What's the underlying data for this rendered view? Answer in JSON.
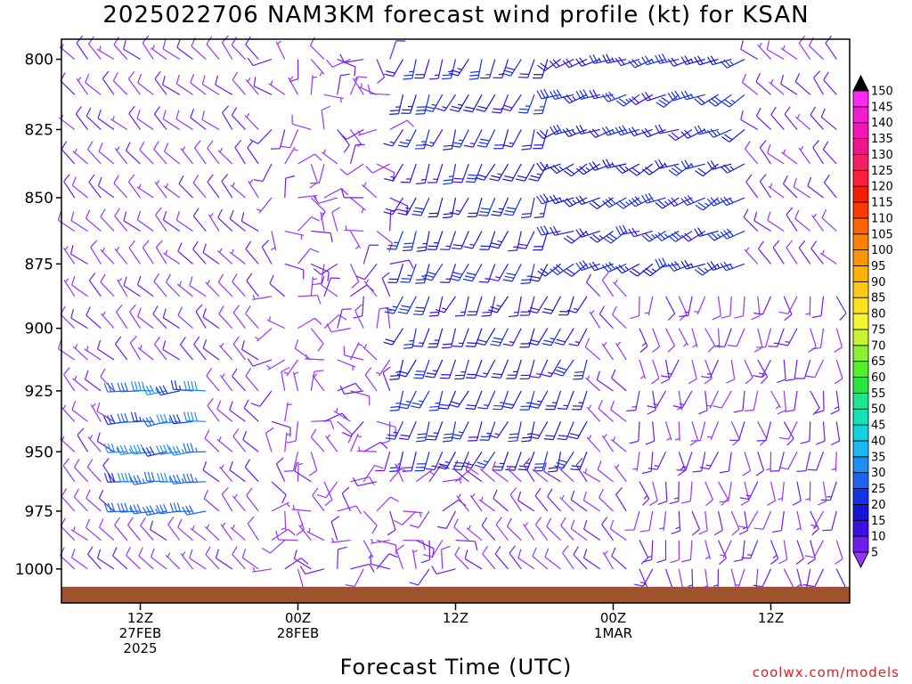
{
  "chart_data": {
    "type": "wind-barb profile",
    "title": "2025022706 NAM3KM forecast wind profile (kt) for KSAN",
    "xlabel": "Forecast Time (UTC)",
    "ylabel": "",
    "y_ticks": [
      800,
      825,
      850,
      875,
      900,
      925,
      950,
      975,
      1000
    ],
    "ylim": [
      1015,
      793
    ],
    "y_scale": "log-pressure",
    "x_ticks": [
      {
        "hour": 6,
        "lines": [
          "12Z",
          "27FEB",
          "2025"
        ]
      },
      {
        "hour": 18,
        "lines": [
          "00Z",
          "28FEB",
          ""
        ]
      },
      {
        "hour": 30,
        "lines": [
          "12Z",
          "",
          ""
        ]
      },
      {
        "hour": 42,
        "lines": [
          "00Z",
          "1MAR",
          ""
        ]
      },
      {
        "hour": 54,
        "lines": [
          "12Z",
          "",
          ""
        ]
      }
    ],
    "xlim": [
      0,
      60
    ],
    "colorbar": {
      "levels": [
        5,
        10,
        15,
        20,
        25,
        30,
        35,
        40,
        45,
        50,
        55,
        60,
        65,
        70,
        75,
        80,
        85,
        90,
        95,
        100,
        105,
        110,
        115,
        120,
        125,
        130,
        135,
        140,
        145,
        150
      ],
      "colors": [
        "#9a33ff",
        "#6e1cf0",
        "#3a10e6",
        "#1515d8",
        "#1532e6",
        "#1e64f0",
        "#1e8ef5",
        "#1ab8f5",
        "#11d2e0",
        "#15e0b8",
        "#1ee68c",
        "#28e640",
        "#52f028",
        "#8cf032",
        "#c8f532",
        "#f5f532",
        "#ffe11e",
        "#ffc814",
        "#ffb000",
        "#ff9600",
        "#ff8200",
        "#ff6400",
        "#ff3a00",
        "#f51e00",
        "#ff1e3c",
        "#f51e64",
        "#f0148c",
        "#f514b4",
        "#f01ed2",
        "#ff28f0"
      ]
    },
    "terrain_color": "#a0522d",
    "surface_pressure_hpa": 1009,
    "wind_regimes": [
      {
        "hours": [
          0,
          12
        ],
        "levels": [
          800,
          1010
        ],
        "speed_kt": [
          6,
          12
        ],
        "direction_deg": [
          300,
          330
        ]
      },
      {
        "hours": [
          5,
          11
        ],
        "levels": [
          925,
          980
        ],
        "speed_kt": [
          25,
          40
        ],
        "direction_deg": [
          255,
          275
        ]
      },
      {
        "hours": [
          16,
          30
        ],
        "levels": [
          800,
          1010
        ],
        "speed_kt": [
          5,
          12
        ],
        "direction_deg": [
          0,
          360
        ]
      },
      {
        "hours": [
          26,
          40
        ],
        "levels": [
          800,
          960
        ],
        "speed_kt": [
          15,
          30
        ],
        "direction_deg": [
          190,
          215
        ]
      },
      {
        "hours": [
          38,
          52
        ],
        "levels": [
          800,
          880
        ],
        "speed_kt": [
          18,
          30
        ],
        "direction_deg": [
          230,
          260
        ]
      },
      {
        "hours": [
          44,
          60
        ],
        "levels": [
          880,
          1010
        ],
        "speed_kt": [
          6,
          14
        ],
        "direction_deg": [
          150,
          210
        ]
      }
    ]
  },
  "labels": {
    "credit": "coolwx.com/models"
  }
}
